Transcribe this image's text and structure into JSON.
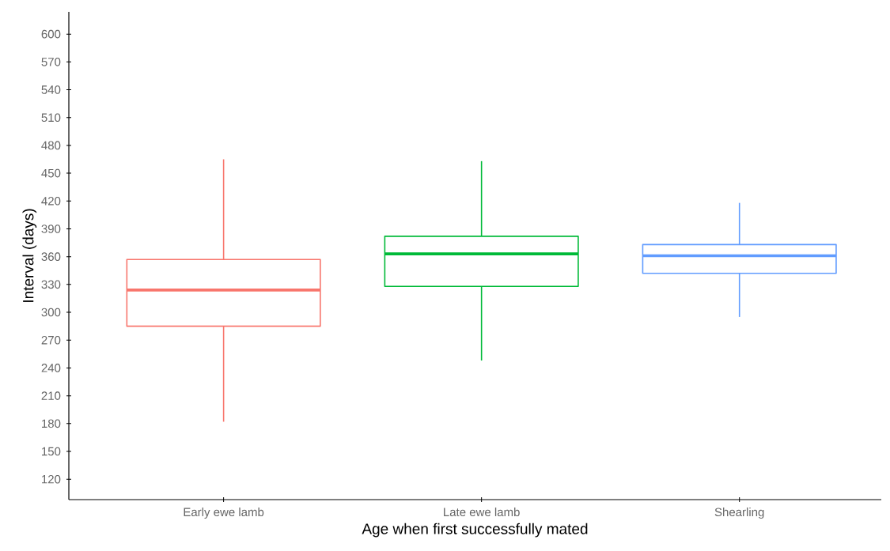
{
  "chart_data": {
    "type": "box",
    "xlabel": "Age when first successfully mated",
    "ylabel": "Interval (days)",
    "categories": [
      "Early ewe lamb",
      "Late ewe lamb",
      "Shearling"
    ],
    "boxes": [
      {
        "low": 182,
        "q1": 285,
        "median": 324,
        "q3": 357,
        "high": 465
      },
      {
        "low": 248,
        "q1": 328,
        "median": 363,
        "q3": 382,
        "high": 463
      },
      {
        "low": 295,
        "q1": 342,
        "median": 361,
        "q3": 373,
        "high": 418
      }
    ],
    "colors": [
      "#f8766d",
      "#00ba38",
      "#619cff"
    ],
    "ylim": [
      98,
      624
    ],
    "yticks": [
      120,
      150,
      180,
      210,
      240,
      270,
      300,
      330,
      360,
      390,
      420,
      450,
      480,
      510,
      540,
      570,
      600
    ]
  }
}
